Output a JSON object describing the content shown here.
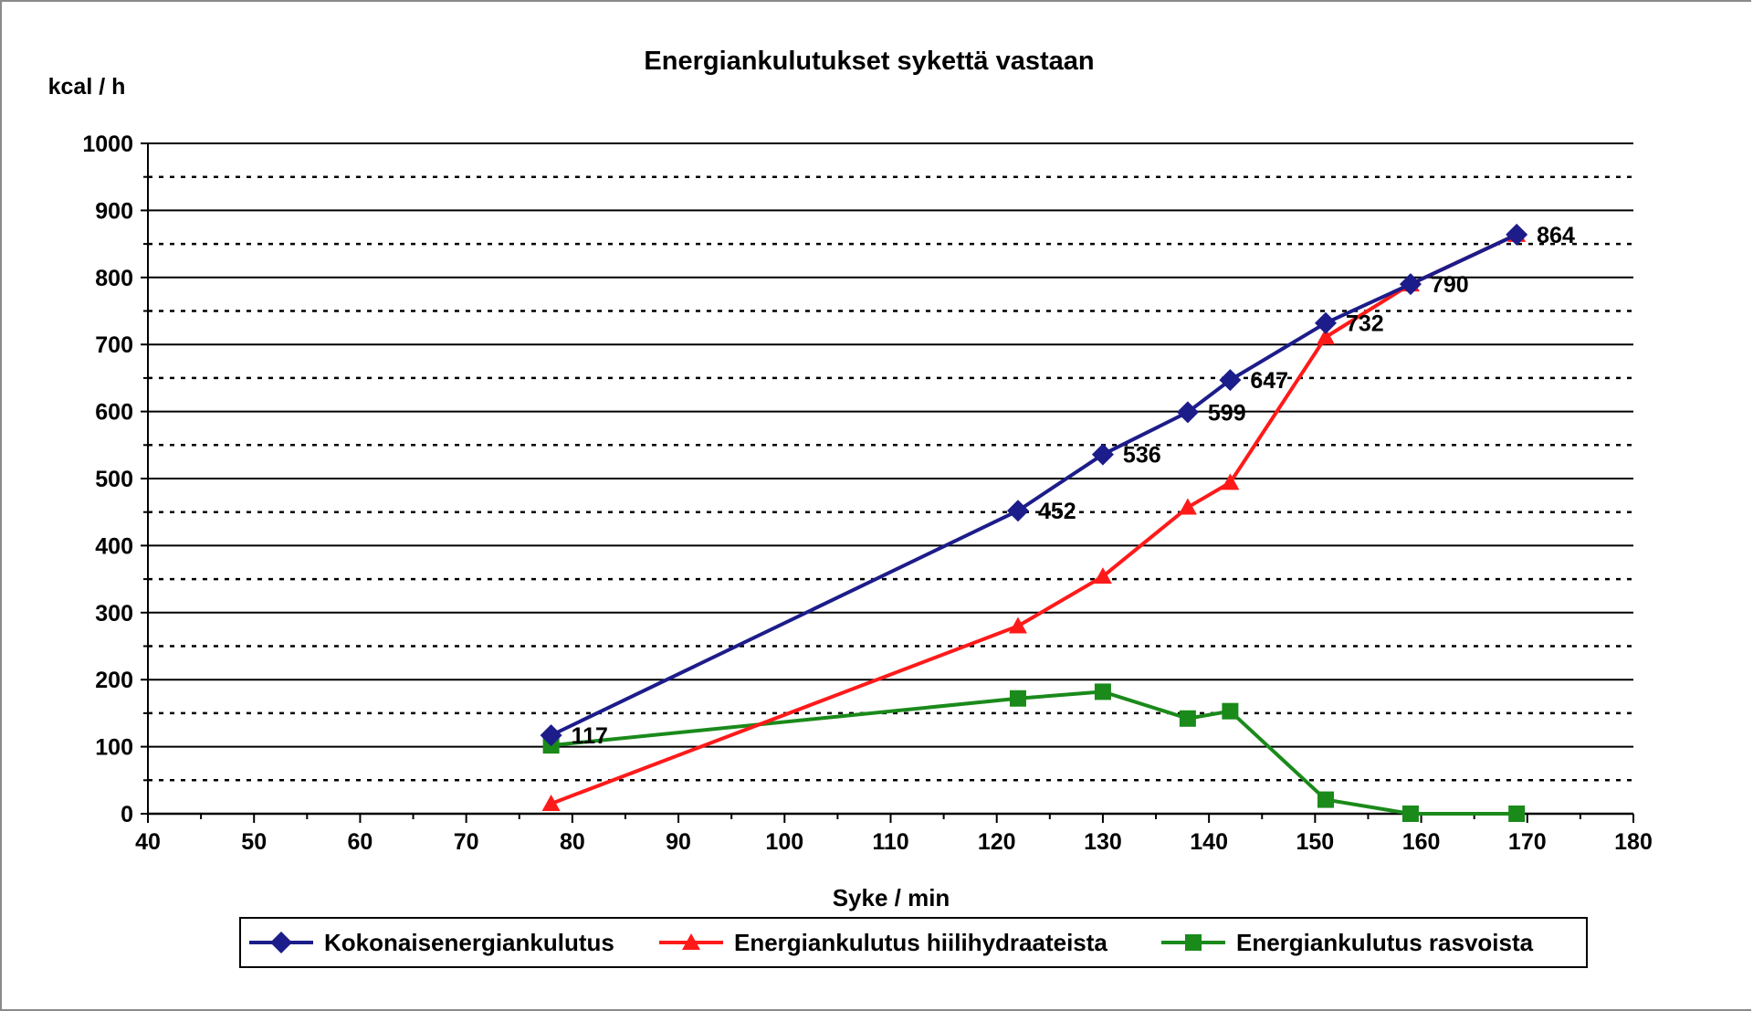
{
  "chart_data": {
    "type": "line",
    "title": "Energiankulutukset sykettä vastaan",
    "xlabel": "Syke / min",
    "ylabel": "kcal / h",
    "xlim": [
      40,
      180
    ],
    "ylim": [
      0,
      1000
    ],
    "x_ticks": [
      "40",
      "50",
      "60",
      "70",
      "80",
      "90",
      "100",
      "110",
      "120",
      "130",
      "140",
      "150",
      "160",
      "170",
      "180"
    ],
    "y_ticks": [
      "0",
      "100",
      "200",
      "300",
      "400",
      "500",
      "600",
      "700",
      "800",
      "900",
      "1000"
    ],
    "grid": "solid major lines every 100, dotted minor lines every 50",
    "legend_position": "bottom",
    "series": [
      {
        "name": "Kokonaisenergiankulutus",
        "color": "#1c1c8a",
        "marker": "diamond",
        "x": [
          78,
          122,
          130,
          138,
          142,
          151,
          159,
          169
        ],
        "y": [
          117,
          452,
          536,
          599,
          647,
          732,
          790,
          864
        ],
        "labels": [
          "117",
          "452",
          "536",
          "599",
          "647",
          "732",
          "790",
          "864"
        ]
      },
      {
        "name": "Energiankulutus hiilihydraateista",
        "color": "#ff1a1a",
        "marker": "triangle",
        "x": [
          78,
          122,
          130,
          138,
          142,
          151,
          159,
          169
        ],
        "y": [
          15,
          280,
          354,
          457,
          494,
          711,
          790,
          864
        ]
      },
      {
        "name": "Energiankulutus rasvoista",
        "color": "#1a8a1a",
        "marker": "square",
        "x": [
          78,
          122,
          130,
          138,
          142,
          151,
          159,
          169
        ],
        "y": [
          102,
          172,
          182,
          142,
          153,
          21,
          0,
          0
        ]
      }
    ]
  }
}
